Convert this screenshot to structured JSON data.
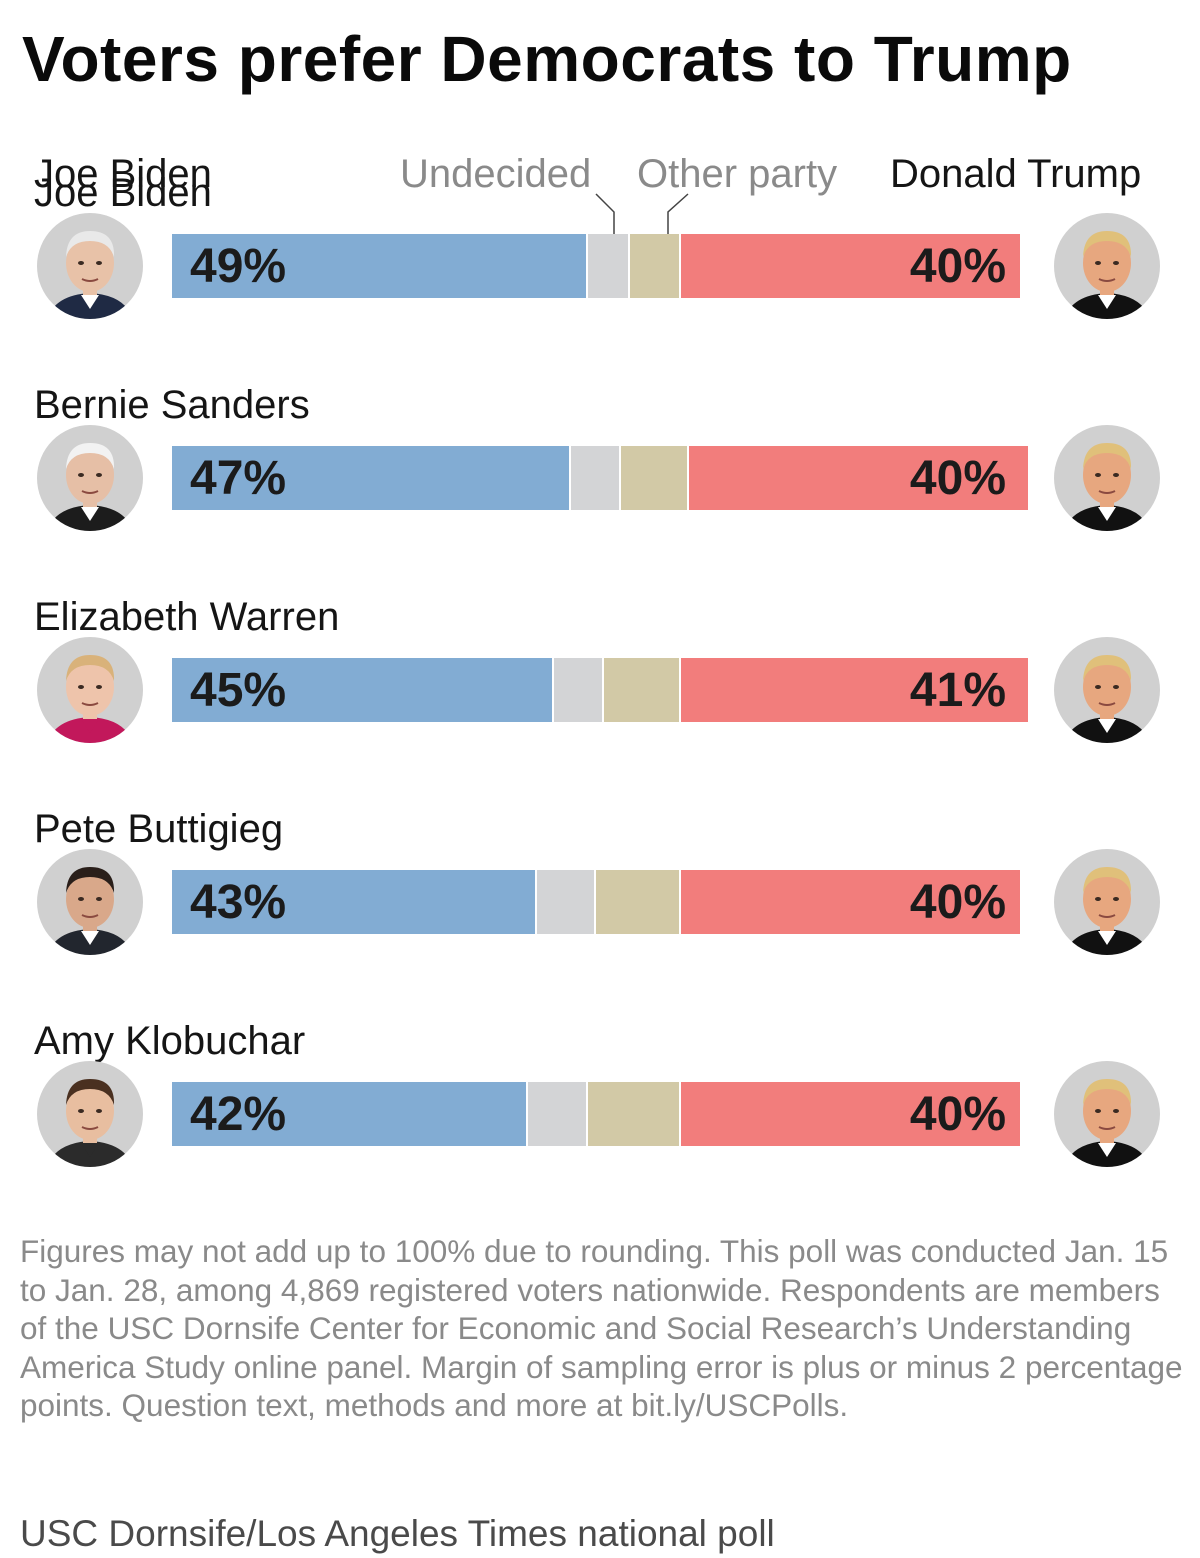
{
  "title": "Voters prefer Democrats to Trump",
  "legend": {
    "democrat_label": "Joe Biden",
    "undecided_label": "Undecided",
    "other_label": "Other party",
    "republican_label": "Donald Trump"
  },
  "colors": {
    "democrat": "#82acd3",
    "undecided": "#d3d4d6",
    "other": "#d2c9a6",
    "republican": "#f27d7c",
    "avatar_bg": "#d0d0d0"
  },
  "chart_data": {
    "type": "bar",
    "orientation": "horizontal-stacked",
    "categories": [
      "Joe Biden",
      "Bernie Sanders",
      "Elizabeth Warren",
      "Pete Buttigieg",
      "Amy Klobuchar"
    ],
    "series": [
      {
        "name": "Democrat",
        "values": [
          49,
          47,
          45,
          43,
          42
        ]
      },
      {
        "name": "Undecided",
        "values": [
          5,
          6,
          6,
          7,
          7
        ]
      },
      {
        "name": "Other party",
        "values": [
          6,
          8,
          9,
          10,
          11
        ]
      },
      {
        "name": "Donald Trump",
        "values": [
          40,
          40,
          41,
          40,
          40
        ]
      }
    ],
    "labels_dem": [
      "49%",
      "47%",
      "45%",
      "43%",
      "42%"
    ],
    "labels_rep": [
      "40%",
      "40%",
      "41%",
      "40%",
      "40%"
    ],
    "total": 100
  },
  "note": "Figures may not add up to 100% due to rounding. This poll was conducted Jan. 15 to Jan. 28, among 4,869 registered voters nationwide. Respondents are members of the USC Dornsife Center for Economic and Social Research’s Understanding America Study online panel. Margin of sampling error is plus or minus 2 percentage points. Question text, methods and more at bit.ly/USCPolls.",
  "source": "USC Dornsife/Los Angeles Times national poll"
}
